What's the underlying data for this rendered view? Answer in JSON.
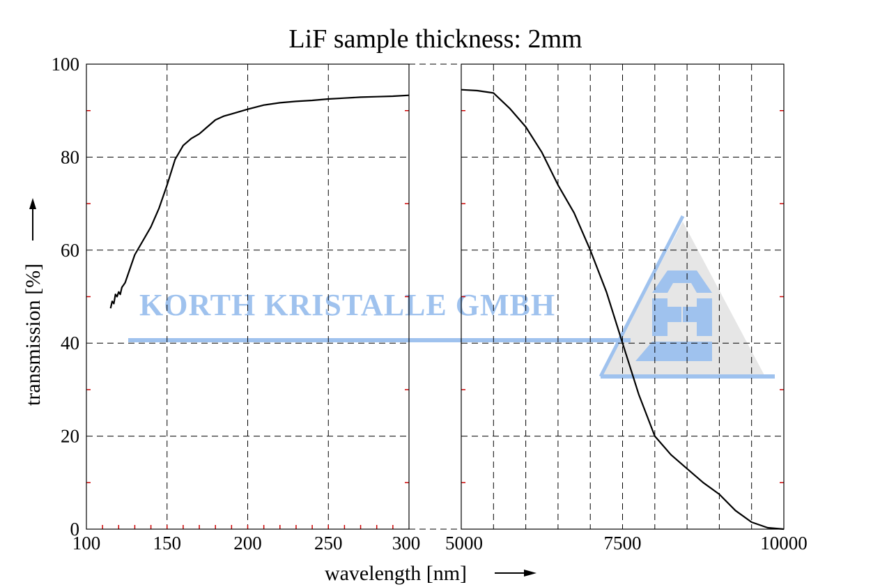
{
  "chart_data": {
    "type": "line",
    "title": "LiF sample thickness: 2mm",
    "xlabel": "wavelength [nm]",
    "ylabel": "transmission [%]",
    "ylim": [
      0,
      100
    ],
    "yticks": [
      "0",
      "20",
      "40",
      "60",
      "80",
      "100"
    ],
    "grid": true,
    "broken_x_axis": true,
    "panels": [
      {
        "xlim": [
          100,
          300
        ],
        "xticks": [
          "100",
          "150",
          "200",
          "250",
          "300"
        ],
        "series": [
          {
            "x": [
              115,
              116,
              117,
              118,
              119,
              120,
              121,
              122,
              124,
              127,
              130,
              135,
              140,
              145,
              150,
              155,
              160,
              165,
              170,
              175,
              180,
              185,
              190,
              200,
              210,
              220,
              230,
              240,
              250,
              260,
              270,
              280,
              290,
              300
            ],
            "y": [
              47.5,
              49,
              48.5,
              50.5,
              50,
              51,
              50.5,
              52,
              53,
              56,
              59,
              62,
              65,
              69,
              74,
              79.5,
              82.5,
              84,
              85,
              86.5,
              88,
              88.8,
              89.3,
              90.3,
              91.2,
              91.7,
              92.0,
              92.2,
              92.5,
              92.7,
              92.9,
              93.0,
              93.1,
              93.3
            ]
          }
        ]
      },
      {
        "xlim": [
          5000,
          10000
        ],
        "xticks": [
          "5000",
          "7500",
          "10000"
        ],
        "series": [
          {
            "x": [
              5000,
              5250,
              5500,
              5750,
              6000,
              6250,
              6500,
              6750,
              7000,
              7250,
              7500,
              7750,
              8000,
              8250,
              8500,
              8750,
              9000,
              9250,
              9500,
              9750,
              10000
            ],
            "y": [
              94.5,
              94.3,
              93.8,
              90.5,
              86.5,
              81,
              74,
              68,
              60,
              51,
              40,
              29,
              20,
              16,
              13,
              10,
              7.5,
              4,
              1.5,
              0.3,
              0
            ]
          }
        ]
      }
    ]
  },
  "watermark": {
    "text": "KORTH KRISTALLE GMBH",
    "color": "#9fc2ee"
  },
  "colors": {
    "line": "#000000",
    "grid": "#000000",
    "minor_tick": "#cc0000",
    "watermark_triangle": "#e6e6e6"
  }
}
